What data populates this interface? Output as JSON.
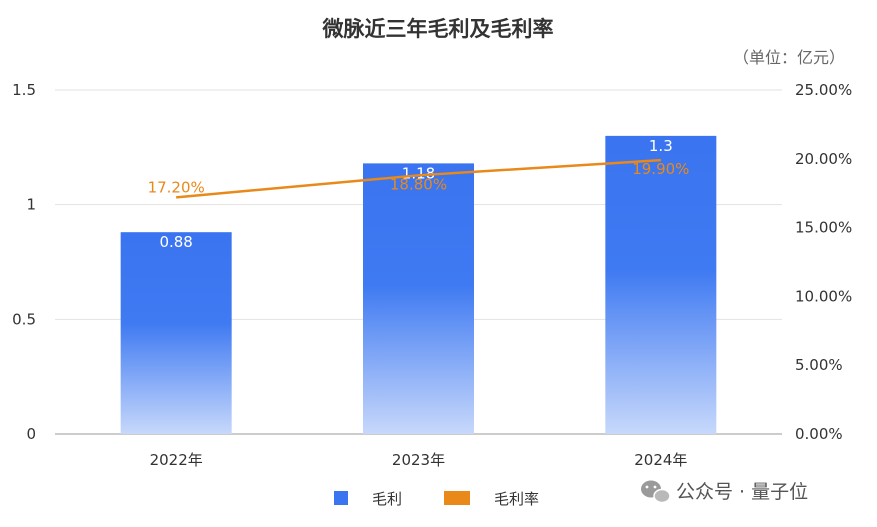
{
  "chart_data": {
    "type": "bar",
    "title": "微脉近三年毛利及毛利率",
    "unit_note": "（单位：亿元）",
    "categories": [
      "2022年",
      "2023年",
      "2024年"
    ],
    "series": [
      {
        "name": "毛利",
        "type": "bar",
        "axis": "left",
        "values": [
          0.88,
          1.18,
          1.3
        ],
        "labels": [
          "0.88",
          "1.18",
          "1.3"
        ],
        "color": "#3a74f0"
      },
      {
        "name": "毛利率",
        "type": "line",
        "axis": "right",
        "values": [
          17.2,
          18.8,
          19.9
        ],
        "labels": [
          "17.20%",
          "18.80%",
          "19.90%"
        ],
        "color": "#e8891a"
      }
    ],
    "y_left": {
      "min": 0,
      "max": 1.5,
      "ticks": [
        "0",
        "0.5",
        "1",
        "1.5"
      ],
      "tick_values": [
        0,
        0.5,
        1,
        1.5
      ]
    },
    "y_right": {
      "min": 0,
      "max": 25,
      "ticks": [
        "0.00%",
        "5.00%",
        "10.00%",
        "15.00%",
        "20.00%",
        "25.00%"
      ],
      "tick_values": [
        0,
        5,
        10,
        15,
        20,
        25
      ]
    },
    "grid": true,
    "legend": "bottom"
  },
  "watermark": {
    "text": "公众号 · 量子位",
    "icon": "wechat-icon"
  }
}
